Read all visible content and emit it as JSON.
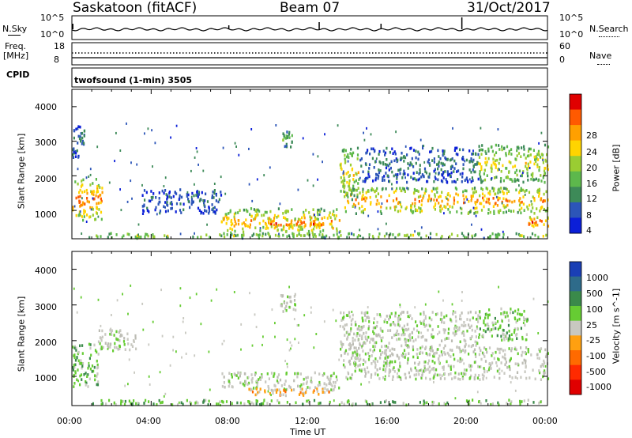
{
  "header": {
    "station": "Saskatoon (fitACF)",
    "beam": "Beam 07",
    "date": "31/Oct/2017"
  },
  "noise_panel": {
    "left_label": "N.Sky",
    "right_label": "N.Search",
    "left_ticks": [
      "10^5",
      "10^0"
    ],
    "right_ticks": [
      "10^5",
      "10^0"
    ]
  },
  "freq_panel": {
    "left_label_1": "Freq.",
    "left_label_2": "[MHz]",
    "left_ticks": [
      "18",
      "8"
    ],
    "right_ticks": [
      "60",
      "0"
    ],
    "right_label": "Nave",
    "cpid_label": "CPID"
  },
  "cpid_text": "twofsound (1-min) 3505",
  "chart_data": [
    {
      "type": "heatmap",
      "title": "Power",
      "ylabel": "Slant Range [km]",
      "xlabel": "Time UT",
      "x_ticks": [
        "00:00",
        "04:00",
        "08:00",
        "12:00",
        "16:00",
        "20:00",
        "00:00"
      ],
      "xlim_hours": [
        0,
        24
      ],
      "ylim": [
        180,
        4500
      ],
      "y_ticks": [
        1000,
        2000,
        3000,
        4000
      ],
      "colorbar": {
        "label": "Power [dB]",
        "ticks": [
          "4",
          "8",
          "12",
          "16",
          "20",
          "24",
          "28"
        ],
        "colors": [
          "#0b1fd8",
          "#2c55b8",
          "#3d8a58",
          "#5db84c",
          "#9acd32",
          "#ffd400",
          "#ffa000",
          "#ff5a00",
          "#e00000"
        ]
      },
      "regions": [
        {
          "t0": 0.0,
          "t1": 1.5,
          "r0": 700,
          "r1": 1900,
          "level": 0.85
        },
        {
          "t0": 0.0,
          "t1": 0.6,
          "r0": 2500,
          "r1": 3500,
          "level": 0.2
        },
        {
          "t0": 3.5,
          "t1": 7.5,
          "r0": 900,
          "r1": 1600,
          "level": 0.15
        },
        {
          "t0": 7.5,
          "t1": 13.5,
          "r0": 250,
          "r1": 1050,
          "level": 0.75
        },
        {
          "t0": 9.6,
          "t1": 12.8,
          "r0": 500,
          "r1": 750,
          "level": 1.0
        },
        {
          "t0": 0.8,
          "t1": 24.0,
          "r0": 190,
          "r1": 330,
          "level": 0.55
        },
        {
          "t0": 13.7,
          "t1": 24.0,
          "r0": 900,
          "r1": 1650,
          "level": 0.8
        },
        {
          "t0": 13.5,
          "t1": 14.5,
          "r0": 1300,
          "r1": 2800,
          "level": 0.6
        },
        {
          "t0": 14.5,
          "t1": 20.5,
          "r0": 1800,
          "r1": 2800,
          "level": 0.2
        },
        {
          "t0": 20.5,
          "t1": 24.0,
          "r0": 1800,
          "r1": 2900,
          "level": 0.6
        },
        {
          "t0": 10.6,
          "t1": 11.1,
          "r0": 2800,
          "r1": 3300,
          "level": 0.35
        },
        {
          "t0": 23.0,
          "t1": 24.0,
          "r0": 500,
          "r1": 800,
          "level": 0.95
        }
      ]
    },
    {
      "type": "heatmap",
      "title": "Velocity",
      "ylabel": "Slant Range [km]",
      "xlabel": "Time UT",
      "x_ticks": [
        "00:00",
        "04:00",
        "08:00",
        "12:00",
        "16:00",
        "20:00",
        "00:00"
      ],
      "xlim_hours": [
        0,
        24
      ],
      "ylim": [
        180,
        4500
      ],
      "y_ticks": [
        1000,
        2000,
        3000,
        4000
      ],
      "colorbar": {
        "label": "Velocity [m s^-1]",
        "ticks": [
          "1000",
          "500",
          "100",
          "25",
          "-25",
          "-100",
          "-500",
          "-1000"
        ],
        "colors": [
          "#1a3fb5",
          "#2e6b8a",
          "#3a8a4a",
          "#66cc33",
          "#c8c8c0",
          "#ffa010",
          "#ff6a00",
          "#ff2a00",
          "#e00000"
        ]
      },
      "regions": [
        {
          "t0": 0.0,
          "t1": 1.3,
          "r0": 700,
          "r1": 1900,
          "level": "green"
        },
        {
          "t0": 1.3,
          "t1": 3.2,
          "r0": 1700,
          "r1": 2300,
          "level": "gray"
        },
        {
          "t0": 7.5,
          "t1": 13.5,
          "r0": 600,
          "r1": 1100,
          "level": "gray"
        },
        {
          "t0": 8.8,
          "t1": 13.0,
          "r0": 450,
          "r1": 650,
          "level": "orange"
        },
        {
          "t0": 0.8,
          "t1": 24.0,
          "r0": 190,
          "r1": 330,
          "level": "green"
        },
        {
          "t0": 13.7,
          "t1": 24.0,
          "r0": 900,
          "r1": 1800,
          "level": "gray"
        },
        {
          "t0": 13.5,
          "t1": 14.5,
          "r0": 1300,
          "r1": 2800,
          "level": "gray"
        },
        {
          "t0": 14.5,
          "t1": 20.5,
          "r0": 1800,
          "r1": 2800,
          "level": "gray"
        },
        {
          "t0": 20.5,
          "t1": 23.0,
          "r0": 2000,
          "r1": 2900,
          "level": "green"
        },
        {
          "t0": 10.5,
          "t1": 11.3,
          "r0": 2800,
          "r1": 3300,
          "level": "gray"
        }
      ]
    }
  ],
  "colors": {
    "power_scale": [
      "#0b1fd8",
      "#2c55b8",
      "#3d8a58",
      "#5db84c",
      "#9acd32",
      "#ffd400",
      "#ffa000",
      "#ff5a00",
      "#e00000"
    ],
    "velocity_scale": [
      "#1a3fb5",
      "#2e6b8a",
      "#3a8a4a",
      "#66cc33",
      "#c8c8c0",
      "#ffa010",
      "#ff6a00",
      "#ff2a00",
      "#e00000"
    ]
  }
}
